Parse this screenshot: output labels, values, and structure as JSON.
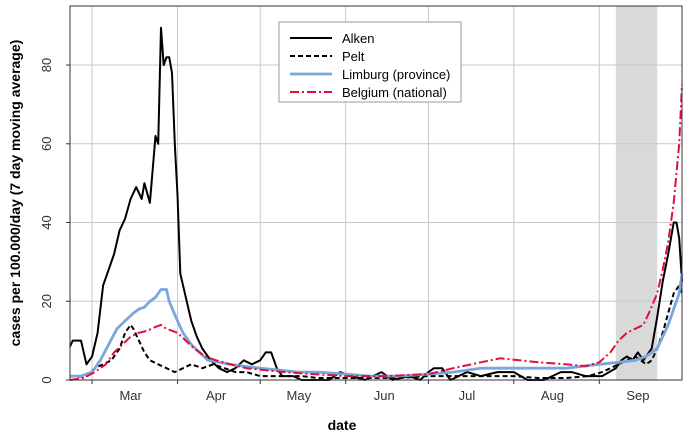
{
  "chart_data": {
    "type": "line",
    "xlabel": "date",
    "ylabel": "cases per 100.000/day (7 day moving average)",
    "x_range": [
      "2020-02-22",
      "2020-10-01"
    ],
    "ylim": [
      0,
      95
    ],
    "y_ticks": [
      0,
      20,
      40,
      60,
      80
    ],
    "x_ticks": [
      {
        "label": "Mar",
        "date": "2020-03-01"
      },
      {
        "label": "Apr",
        "date": "2020-04-01"
      },
      {
        "label": "May",
        "date": "2020-05-01"
      },
      {
        "label": "Jun",
        "date": "2020-06-01"
      },
      {
        "label": "Jul",
        "date": "2020-07-01"
      },
      {
        "label": "Aug",
        "date": "2020-08-01"
      },
      {
        "label": "Sep",
        "date": "2020-09-01"
      }
    ],
    "grid": true,
    "shaded_period": {
      "start": "2020-09-07",
      "end": "2020-09-22"
    },
    "legend_position": "top-center",
    "series": [
      {
        "name": "Alken",
        "color": "#000000",
        "dash": "solid",
        "points": [
          [
            "2020-02-22",
            8.5
          ],
          [
            "2020-02-23",
            10
          ],
          [
            "2020-02-26",
            10
          ],
          [
            "2020-02-28",
            4
          ],
          [
            "2020-03-01",
            6
          ],
          [
            "2020-03-03",
            12
          ],
          [
            "2020-03-05",
            24
          ],
          [
            "2020-03-07",
            28
          ],
          [
            "2020-03-09",
            32
          ],
          [
            "2020-03-11",
            38
          ],
          [
            "2020-03-13",
            41
          ],
          [
            "2020-03-15",
            46
          ],
          [
            "2020-03-17",
            49
          ],
          [
            "2020-03-19",
            46
          ],
          [
            "2020-03-20",
            50
          ],
          [
            "2020-03-22",
            45
          ],
          [
            "2020-03-24",
            62
          ],
          [
            "2020-03-25",
            60
          ],
          [
            "2020-03-26",
            89.5
          ],
          [
            "2020-03-27",
            80
          ],
          [
            "2020-03-28",
            82
          ],
          [
            "2020-03-29",
            82
          ],
          [
            "2020-03-30",
            78
          ],
          [
            "2020-03-31",
            60
          ],
          [
            "2020-04-01",
            47
          ],
          [
            "2020-04-02",
            27
          ],
          [
            "2020-04-04",
            21
          ],
          [
            "2020-04-06",
            15
          ],
          [
            "2020-04-08",
            11
          ],
          [
            "2020-04-10",
            8
          ],
          [
            "2020-04-13",
            5
          ],
          [
            "2020-04-16",
            3
          ],
          [
            "2020-04-19",
            2
          ],
          [
            "2020-04-22",
            3
          ],
          [
            "2020-04-25",
            5
          ],
          [
            "2020-04-28",
            4
          ],
          [
            "2020-05-01",
            5
          ],
          [
            "2020-05-03",
            7
          ],
          [
            "2020-05-05",
            7
          ],
          [
            "2020-05-07",
            3
          ],
          [
            "2020-05-09",
            1
          ],
          [
            "2020-05-13",
            1
          ],
          [
            "2020-05-16",
            0
          ],
          [
            "2020-05-22",
            0
          ],
          [
            "2020-05-26",
            0
          ],
          [
            "2020-05-30",
            2
          ],
          [
            "2020-06-03",
            1
          ],
          [
            "2020-06-08",
            0
          ],
          [
            "2020-06-14",
            2
          ],
          [
            "2020-06-18",
            0
          ],
          [
            "2020-06-24",
            1
          ],
          [
            "2020-06-28",
            0
          ],
          [
            "2020-07-01",
            2
          ],
          [
            "2020-07-03",
            3
          ],
          [
            "2020-07-06",
            3
          ],
          [
            "2020-07-09",
            0
          ],
          [
            "2020-07-15",
            2
          ],
          [
            "2020-07-20",
            1
          ],
          [
            "2020-07-26",
            2
          ],
          [
            "2020-08-01",
            2
          ],
          [
            "2020-08-06",
            0
          ],
          [
            "2020-08-12",
            0
          ],
          [
            "2020-08-18",
            2
          ],
          [
            "2020-08-22",
            2
          ],
          [
            "2020-08-27",
            1
          ],
          [
            "2020-09-02",
            1
          ],
          [
            "2020-09-07",
            3
          ],
          [
            "2020-09-09",
            5
          ],
          [
            "2020-09-11",
            6
          ],
          [
            "2020-09-13",
            5
          ],
          [
            "2020-09-15",
            7
          ],
          [
            "2020-09-17",
            5
          ],
          [
            "2020-09-19",
            7
          ],
          [
            "2020-09-20",
            8
          ],
          [
            "2020-09-22",
            16
          ],
          [
            "2020-09-24",
            25
          ],
          [
            "2020-09-26",
            32
          ],
          [
            "2020-09-28",
            40
          ],
          [
            "2020-09-29",
            40
          ],
          [
            "2020-09-30",
            36
          ],
          [
            "2020-10-01",
            25
          ]
        ]
      },
      {
        "name": "Pelt",
        "color": "#000000",
        "dash": "dashed",
        "points": [
          [
            "2020-02-22",
            1
          ],
          [
            "2020-02-25",
            0.8
          ],
          [
            "2020-02-28",
            1
          ],
          [
            "2020-03-02",
            3
          ],
          [
            "2020-03-05",
            4
          ],
          [
            "2020-03-08",
            5
          ],
          [
            "2020-03-11",
            8
          ],
          [
            "2020-03-13",
            12
          ],
          [
            "2020-03-15",
            14
          ],
          [
            "2020-03-16",
            13
          ],
          [
            "2020-03-18",
            10
          ],
          [
            "2020-03-20",
            7
          ],
          [
            "2020-03-22",
            5
          ],
          [
            "2020-03-25",
            4
          ],
          [
            "2020-03-28",
            3
          ],
          [
            "2020-03-31",
            2
          ],
          [
            "2020-04-03",
            3
          ],
          [
            "2020-04-06",
            4
          ],
          [
            "2020-04-10",
            3
          ],
          [
            "2020-04-14",
            4
          ],
          [
            "2020-04-18",
            3
          ],
          [
            "2020-04-22",
            2
          ],
          [
            "2020-04-26",
            2
          ],
          [
            "2020-05-01",
            1
          ],
          [
            "2020-05-06",
            1
          ],
          [
            "2020-05-11",
            1
          ],
          [
            "2020-05-16",
            1
          ],
          [
            "2020-05-22",
            0.5
          ],
          [
            "2020-06-01",
            0.5
          ],
          [
            "2020-06-10",
            0.5
          ],
          [
            "2020-06-20",
            0.5
          ],
          [
            "2020-07-01",
            1
          ],
          [
            "2020-07-10",
            1
          ],
          [
            "2020-07-20",
            1
          ],
          [
            "2020-08-01",
            1
          ],
          [
            "2020-08-10",
            0.5
          ],
          [
            "2020-08-20",
            0.5
          ],
          [
            "2020-08-28",
            1
          ],
          [
            "2020-09-02",
            2
          ],
          [
            "2020-09-05",
            3
          ],
          [
            "2020-09-08",
            4
          ],
          [
            "2020-09-11",
            5
          ],
          [
            "2020-09-14",
            6
          ],
          [
            "2020-09-16",
            5
          ],
          [
            "2020-09-18",
            4
          ],
          [
            "2020-09-20",
            5
          ],
          [
            "2020-09-22",
            8
          ],
          [
            "2020-09-24",
            12
          ],
          [
            "2020-09-26",
            17
          ],
          [
            "2020-09-28",
            22
          ],
          [
            "2020-09-30",
            24
          ],
          [
            "2020-10-01",
            22
          ]
        ]
      },
      {
        "name": "Limburg (province)",
        "color": "#7aa6de",
        "dash": "solid",
        "points": [
          [
            "2020-02-22",
            1
          ],
          [
            "2020-02-26",
            1
          ],
          [
            "2020-03-01",
            2
          ],
          [
            "2020-03-04",
            5
          ],
          [
            "2020-03-07",
            9
          ],
          [
            "2020-03-10",
            13
          ],
          [
            "2020-03-13",
            15
          ],
          [
            "2020-03-16",
            17
          ],
          [
            "2020-03-18",
            18
          ],
          [
            "2020-03-20",
            18.5
          ],
          [
            "2020-03-22",
            20
          ],
          [
            "2020-03-24",
            21
          ],
          [
            "2020-03-26",
            23
          ],
          [
            "2020-03-28",
            23
          ],
          [
            "2020-03-29",
            20
          ],
          [
            "2020-04-01",
            15
          ],
          [
            "2020-04-03",
            12
          ],
          [
            "2020-04-06",
            9
          ],
          [
            "2020-04-09",
            7
          ],
          [
            "2020-04-12",
            5
          ],
          [
            "2020-04-16",
            4.5
          ],
          [
            "2020-04-20",
            4
          ],
          [
            "2020-04-25",
            3.5
          ],
          [
            "2020-05-01",
            3
          ],
          [
            "2020-05-08",
            2.5
          ],
          [
            "2020-05-15",
            2
          ],
          [
            "2020-05-22",
            2
          ],
          [
            "2020-06-01",
            1.5
          ],
          [
            "2020-06-10",
            1
          ],
          [
            "2020-06-20",
            1
          ],
          [
            "2020-07-01",
            1.5
          ],
          [
            "2020-07-10",
            2
          ],
          [
            "2020-07-20",
            3
          ],
          [
            "2020-08-01",
            3
          ],
          [
            "2020-08-10",
            3
          ],
          [
            "2020-08-20",
            3
          ],
          [
            "2020-09-01",
            4
          ],
          [
            "2020-09-08",
            4.5
          ],
          [
            "2020-09-14",
            5
          ],
          [
            "2020-09-18",
            6
          ],
          [
            "2020-09-22",
            8
          ],
          [
            "2020-09-24",
            11
          ],
          [
            "2020-09-26",
            14
          ],
          [
            "2020-09-28",
            18
          ],
          [
            "2020-09-30",
            22
          ],
          [
            "2020-10-01",
            27
          ]
        ]
      },
      {
        "name": "Belgium (national)",
        "color": "#e0103a",
        "dash": "dashdot",
        "points": [
          [
            "2020-02-22",
            0
          ],
          [
            "2020-02-27",
            0.5
          ],
          [
            "2020-03-02",
            2
          ],
          [
            "2020-03-06",
            4
          ],
          [
            "2020-03-09",
            7
          ],
          [
            "2020-03-12",
            9
          ],
          [
            "2020-03-15",
            11
          ],
          [
            "2020-03-18",
            12
          ],
          [
            "2020-03-21",
            12.5
          ],
          [
            "2020-03-24",
            13.5
          ],
          [
            "2020-03-26",
            14
          ],
          [
            "2020-03-28",
            13
          ],
          [
            "2020-04-01",
            12
          ],
          [
            "2020-04-04",
            10
          ],
          [
            "2020-04-07",
            8
          ],
          [
            "2020-04-11",
            6
          ],
          [
            "2020-04-15",
            5
          ],
          [
            "2020-04-20",
            4
          ],
          [
            "2020-04-26",
            3
          ],
          [
            "2020-05-03",
            2.5
          ],
          [
            "2020-05-10",
            2
          ],
          [
            "2020-05-20",
            1.5
          ],
          [
            "2020-06-01",
            1
          ],
          [
            "2020-06-15",
            1
          ],
          [
            "2020-07-01",
            1.5
          ],
          [
            "2020-07-10",
            3
          ],
          [
            "2020-07-20",
            4.5
          ],
          [
            "2020-07-27",
            5.5
          ],
          [
            "2020-08-03",
            5
          ],
          [
            "2020-08-10",
            4.5
          ],
          [
            "2020-08-20",
            4
          ],
          [
            "2020-08-27",
            3.5
          ],
          [
            "2020-09-01",
            4.5
          ],
          [
            "2020-09-05",
            7
          ],
          [
            "2020-09-08",
            10
          ],
          [
            "2020-09-11",
            12
          ],
          [
            "2020-09-14",
            13
          ],
          [
            "2020-09-17",
            14
          ],
          [
            "2020-09-19",
            17
          ],
          [
            "2020-09-22",
            22
          ],
          [
            "2020-09-24",
            28
          ],
          [
            "2020-09-26",
            35
          ],
          [
            "2020-09-28",
            45
          ],
          [
            "2020-09-30",
            60
          ],
          [
            "2020-10-01",
            75
          ]
        ]
      }
    ]
  }
}
